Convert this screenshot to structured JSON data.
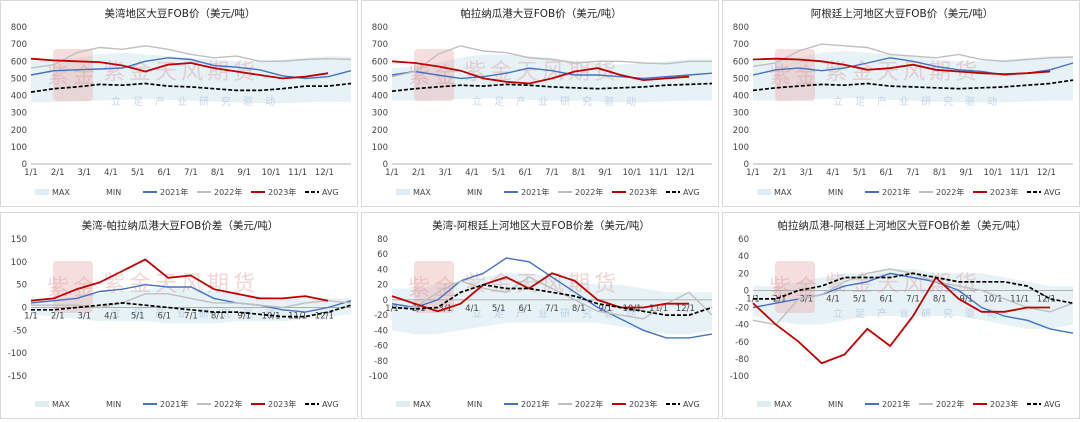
{
  "watermark": {
    "brand": "紫金天风期货",
    "slogan": "立足产业研究驱动",
    "seal": "紫金"
  },
  "colors": {
    "y2021": "#4472c4",
    "y2022": "#bfbfbf",
    "y2023": "#c00000",
    "avg": "#000000",
    "band": "#deedf3"
  },
  "legend_labels": [
    "MAX",
    "MIN",
    "2021年",
    "2022年",
    "2023年",
    "AVG"
  ],
  "x_ticks": [
    "1/1",
    "2/1",
    "3/1",
    "4/1",
    "5/1",
    "6/1",
    "7/1",
    "8/1",
    "9/1",
    "10/1",
    "11/1",
    "12/1"
  ],
  "chart_data": [
    {
      "type": "line",
      "title": "美湾地区大豆FOB价（美元/吨）",
      "ylim": [
        0,
        800
      ],
      "yticks": [
        0,
        100,
        200,
        300,
        400,
        500,
        600,
        700,
        800
      ],
      "band": {
        "max": [
          600,
          610,
          620,
          640,
          650,
          640,
          630,
          620,
          610,
          600,
          600,
          610,
          620,
          630,
          625
        ],
        "min": [
          360,
          360,
          365,
          370,
          375,
          380,
          375,
          370,
          365,
          360,
          355,
          355,
          360,
          365,
          360
        ]
      },
      "series": [
        {
          "name": "2021年",
          "values": [
            520,
            545,
            550,
            555,
            560,
            600,
            620,
            610,
            575,
            565,
            550,
            515,
            500,
            510,
            545
          ]
        },
        {
          "name": "2022年",
          "values": [
            560,
            580,
            650,
            680,
            670,
            690,
            670,
            640,
            620,
            630,
            600,
            600,
            610,
            615,
            610
          ]
        },
        {
          "name": "2023年",
          "values": [
            615,
            605,
            600,
            595,
            575,
            540,
            580,
            590,
            560,
            540,
            520,
            500,
            510,
            530,
            null
          ]
        },
        {
          "name": "AVG",
          "values": [
            420,
            440,
            450,
            465,
            460,
            470,
            455,
            450,
            440,
            430,
            430,
            440,
            455,
            455,
            470
          ]
        }
      ]
    },
    {
      "type": "line",
      "title": "帕拉纳瓜港大豆FOB价（美元/吨）",
      "ylim": [
        0,
        800
      ],
      "yticks": [
        0,
        100,
        200,
        300,
        400,
        500,
        600,
        700,
        800
      ],
      "band": {
        "max": [
          560,
          570,
          590,
          620,
          640,
          640,
          630,
          620,
          600,
          590,
          580,
          590,
          600,
          610,
          610
        ],
        "min": [
          370,
          370,
          375,
          380,
          385,
          380,
          375,
          370,
          370,
          365,
          360,
          360,
          365,
          370,
          370
        ]
      },
      "series": [
        {
          "name": "2021年",
          "values": [
            520,
            540,
            520,
            500,
            510,
            530,
            560,
            545,
            520,
            520,
            510,
            500,
            510,
            520,
            530
          ]
        },
        {
          "name": "2022年",
          "values": [
            510,
            540,
            640,
            690,
            660,
            650,
            620,
            610,
            590,
            600,
            600,
            590,
            585,
            600,
            600
          ]
        },
        {
          "name": "2023年",
          "values": [
            600,
            590,
            570,
            545,
            500,
            480,
            470,
            500,
            540,
            560,
            520,
            490,
            500,
            510,
            null
          ]
        },
        {
          "name": "AVG",
          "values": [
            425,
            440,
            450,
            460,
            455,
            465,
            460,
            450,
            445,
            440,
            445,
            450,
            460,
            465,
            470
          ]
        }
      ]
    },
    {
      "type": "line",
      "title": "阿根廷上河地区大豆FOB价（美元/吨）",
      "ylim": [
        0,
        800
      ],
      "yticks": [
        0,
        100,
        200,
        300,
        400,
        500,
        600,
        700,
        800
      ],
      "band": {
        "max": [
          600,
          610,
          620,
          650,
          660,
          650,
          640,
          630,
          610,
          600,
          600,
          610,
          620,
          630,
          630
        ],
        "min": [
          370,
          370,
          375,
          380,
          385,
          380,
          375,
          370,
          365,
          360,
          360,
          360,
          365,
          370,
          370
        ]
      },
      "series": [
        {
          "name": "2021年",
          "values": [
            520,
            550,
            560,
            545,
            560,
            590,
            620,
            600,
            570,
            550,
            540,
            520,
            530,
            550,
            590
          ]
        },
        {
          "name": "2022年",
          "values": [
            570,
            590,
            660,
            700,
            690,
            680,
            640,
            630,
            620,
            640,
            610,
            600,
            610,
            620,
            625
          ]
        },
        {
          "name": "2023年",
          "values": [
            610,
            615,
            610,
            600,
            580,
            550,
            560,
            580,
            550,
            540,
            530,
            525,
            530,
            540,
            null
          ]
        },
        {
          "name": "AVG",
          "values": [
            430,
            445,
            455,
            465,
            460,
            470,
            455,
            450,
            445,
            440,
            445,
            450,
            460,
            470,
            490
          ]
        }
      ]
    },
    {
      "type": "line",
      "title": "美湾-帕拉纳瓜港大豆FOB价差（美元/吨）",
      "ylim": [
        -150,
        150
      ],
      "yticks": [
        -150,
        -100,
        -50,
        0,
        50,
        100,
        150
      ],
      "band": {
        "max": [
          20,
          20,
          25,
          30,
          35,
          40,
          45,
          40,
          35,
          30,
          25,
          20,
          20,
          20,
          20
        ],
        "min": [
          -15,
          -20,
          -25,
          -30,
          -30,
          -30,
          -35,
          -35,
          -35,
          -30,
          -30,
          -30,
          -25,
          -20,
          -15
        ]
      },
      "series": [
        {
          "name": "2021年",
          "values": [
            10,
            15,
            20,
            35,
            40,
            50,
            45,
            45,
            20,
            10,
            5,
            -5,
            -10,
            0,
            15
          ]
        },
        {
          "name": "2022年",
          "values": [
            5,
            5,
            5,
            0,
            10,
            30,
            30,
            20,
            10,
            10,
            5,
            0,
            10,
            15,
            10
          ]
        },
        {
          "name": "2023年",
          "values": [
            15,
            20,
            40,
            55,
            80,
            105,
            65,
            70,
            40,
            30,
            20,
            20,
            25,
            15,
            null
          ]
        },
        {
          "name": "AVG",
          "values": [
            -5,
            -5,
            0,
            5,
            10,
            5,
            0,
            -5,
            -10,
            -10,
            -15,
            -20,
            -20,
            -10,
            5
          ]
        }
      ]
    },
    {
      "type": "line",
      "title": "美湾-阿根廷上河地区大豆FOB价差（美元/吨）",
      "ylim": [
        -100,
        80
      ],
      "yticks": [
        -100,
        -80,
        -60,
        -40,
        -20,
        0,
        20,
        40,
        60,
        80
      ],
      "band": {
        "max": [
          15,
          15,
          20,
          25,
          30,
          35,
          35,
          30,
          25,
          20,
          20,
          15,
          10,
          10,
          10
        ],
        "min": [
          -40,
          -45,
          -45,
          -40,
          -35,
          -30,
          -30,
          -30,
          -30,
          -30,
          -35,
          -40,
          -45,
          -45,
          -40
        ]
      },
      "series": [
        {
          "name": "2021年",
          "values": [
            -5,
            -10,
            0,
            25,
            35,
            55,
            50,
            30,
            10,
            -10,
            -25,
            -40,
            -50,
            -50,
            -45
          ]
        },
        {
          "name": "2022年",
          "values": [
            -10,
            -10,
            10,
            25,
            15,
            10,
            30,
            15,
            0,
            -15,
            -20,
            -25,
            -5,
            10,
            -20
          ]
        },
        {
          "name": "2023年",
          "values": [
            5,
            -5,
            -15,
            -5,
            20,
            30,
            15,
            35,
            25,
            0,
            -10,
            -10,
            -5,
            -5,
            null
          ]
        },
        {
          "name": "AVG",
          "values": [
            -10,
            -12,
            -10,
            10,
            20,
            15,
            15,
            10,
            5,
            -5,
            -10,
            -15,
            -20,
            -20,
            -10
          ]
        }
      ]
    },
    {
      "type": "line",
      "title": "帕拉纳瓜港-阿根廷上河地区大豆FOB价差（美元/吨）",
      "ylim": [
        -100,
        60
      ],
      "yticks": [
        -100,
        -80,
        -60,
        -40,
        -20,
        0,
        20,
        40,
        60
      ],
      "band": {
        "max": [
          5,
          5,
          10,
          15,
          20,
          20,
          25,
          25,
          20,
          20,
          20,
          15,
          10,
          5,
          5
        ],
        "min": [
          -30,
          -35,
          -40,
          -40,
          -35,
          -30,
          -30,
          -30,
          -30,
          -30,
          -35,
          -40,
          -45,
          -45,
          -40
        ]
      },
      "series": [
        {
          "name": "2021年",
          "values": [
            -20,
            -15,
            -10,
            -5,
            5,
            10,
            20,
            15,
            10,
            0,
            -20,
            -30,
            -35,
            -45,
            -50
          ]
        },
        {
          "name": "2022年",
          "values": [
            -35,
            -40,
            -10,
            -5,
            10,
            20,
            25,
            20,
            10,
            5,
            0,
            -10,
            -20,
            -25,
            -15
          ]
        },
        {
          "name": "2023年",
          "values": [
            -15,
            -40,
            -60,
            -85,
            -75,
            -45,
            -65,
            -30,
            15,
            -10,
            -25,
            -25,
            -20,
            -20,
            null
          ]
        },
        {
          "name": "AVG",
          "values": [
            -10,
            -10,
            0,
            5,
            15,
            15,
            15,
            20,
            15,
            10,
            10,
            10,
            5,
            -10,
            -15
          ]
        }
      ]
    }
  ]
}
